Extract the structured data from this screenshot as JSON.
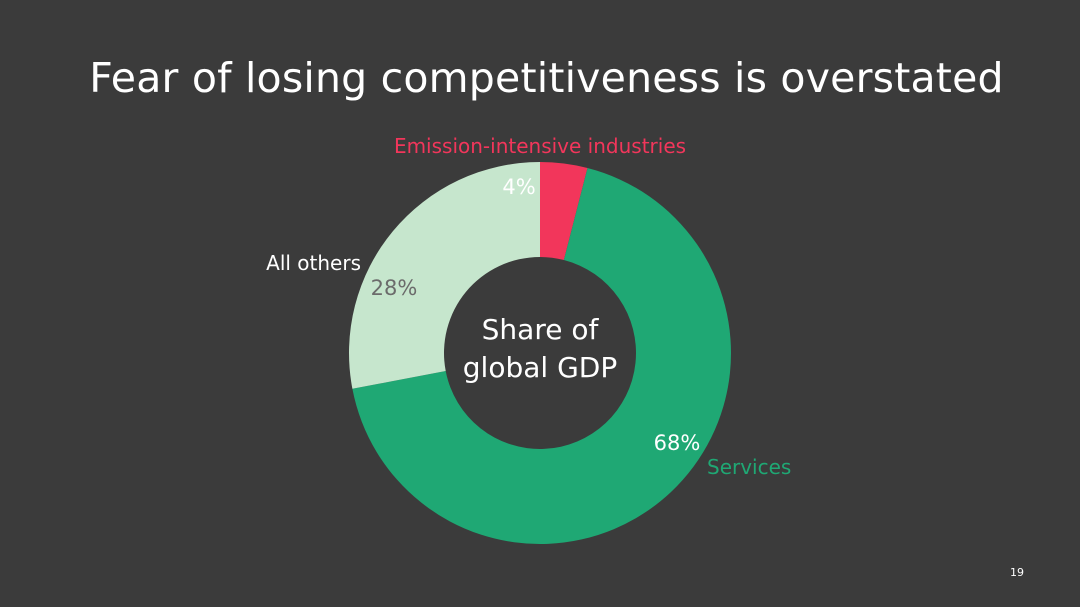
{
  "slide": {
    "title": "Fear of losing competitiveness is overstated",
    "page_number": "19"
  },
  "colors": {
    "background": "#3b3b3b",
    "services": "#1fa874",
    "all_others": "#c6e6cd",
    "emission_intensive": "#f2365b"
  },
  "chart_data": {
    "type": "pie",
    "variant": "donut",
    "center_label": [
      "Share of",
      "global GDP"
    ],
    "slices": [
      {
        "label": "Emission-intensive industries",
        "value": 4,
        "value_label": "4%",
        "color": "#f2365b",
        "label_color": "#f2365b",
        "value_color": "#ffffff"
      },
      {
        "label": "Services",
        "value": 68,
        "value_label": "68%",
        "color": "#1fa874",
        "label_color": "#1fa874",
        "value_color": "#ffffff"
      },
      {
        "label": "All others",
        "value": 28,
        "value_label": "28%",
        "color": "#c6e6cd",
        "label_color": "#ffffff",
        "value_color": "#6b6b6b"
      }
    ]
  }
}
